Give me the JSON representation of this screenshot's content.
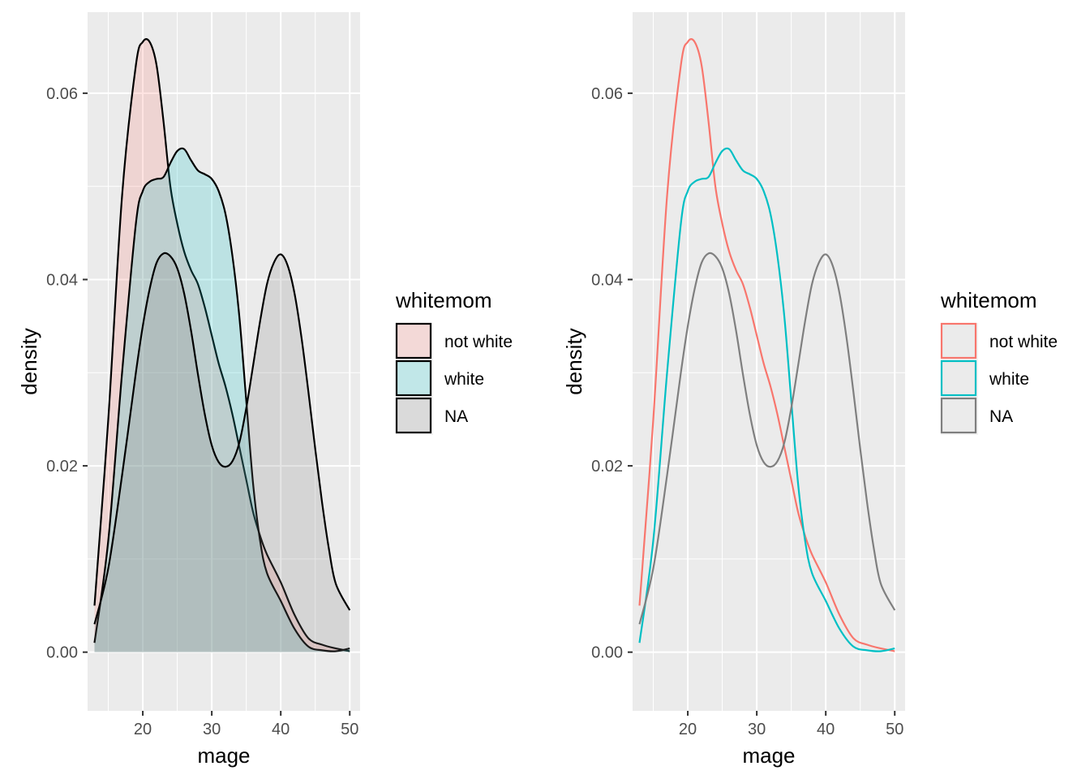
{
  "chart_data": [
    {
      "type": "area",
      "style": "filled",
      "xlabel": "mage",
      "ylabel": "density",
      "xlim": [
        12,
        51.5
      ],
      "ylim": [
        -0.0063,
        0.0687
      ],
      "x_ticks": [
        20,
        30,
        40,
        50
      ],
      "x_tick_labels": [
        "20",
        "30",
        "40",
        "50"
      ],
      "y_ticks": [
        0,
        0.02,
        0.04,
        0.06
      ],
      "y_tick_labels": [
        "0.00",
        "0.02",
        "0.04",
        "0.06"
      ],
      "grid": true,
      "legend": {
        "title": "whitemom",
        "position": "right",
        "entries": [
          "not white",
          "white",
          "NA"
        ]
      },
      "series": [
        {
          "name": "not white",
          "fill": "#F8766D",
          "stroke": "#000000",
          "x": [
            13,
            15,
            17,
            19,
            20,
            21,
            22,
            23,
            24,
            25,
            26,
            27,
            28,
            29,
            30,
            31,
            32,
            33,
            34,
            35,
            36,
            37,
            38,
            40,
            42,
            44,
            46,
            48,
            50
          ],
          "y": [
            0.005,
            0.025,
            0.049,
            0.063,
            0.0655,
            0.0655,
            0.063,
            0.057,
            0.05,
            0.046,
            0.043,
            0.041,
            0.0395,
            0.037,
            0.034,
            0.031,
            0.0285,
            0.0255,
            0.022,
            0.0185,
            0.015,
            0.0125,
            0.0105,
            0.0075,
            0.004,
            0.0015,
            0.0008,
            0.0004,
            0.0001
          ]
        },
        {
          "name": "white",
          "fill": "#00BFC4",
          "stroke": "#000000",
          "x": [
            13,
            15,
            17,
            19,
            20,
            21,
            22,
            23,
            24,
            25,
            26,
            27,
            28,
            29,
            30,
            31,
            32,
            33,
            34,
            35,
            36,
            37,
            38,
            40,
            42,
            44,
            46,
            48,
            50
          ],
          "y": [
            0.001,
            0.012,
            0.03,
            0.046,
            0.0495,
            0.0505,
            0.0508,
            0.051,
            0.0525,
            0.0538,
            0.054,
            0.0528,
            0.0517,
            0.0513,
            0.0508,
            0.0495,
            0.047,
            0.0425,
            0.036,
            0.027,
            0.018,
            0.012,
            0.0085,
            0.0055,
            0.0025,
            0.0006,
            0.0002,
            0.0001,
            0.0004
          ]
        },
        {
          "name": "NA",
          "fill": "#7F7F7F",
          "stroke": "#000000",
          "x": [
            13,
            15,
            17,
            19,
            20,
            21,
            22,
            23,
            24,
            25,
            26,
            27,
            28,
            29,
            30,
            31,
            32,
            33,
            34,
            35,
            36,
            37,
            38,
            39,
            40,
            41,
            42,
            43,
            44,
            45,
            46,
            47,
            48,
            50
          ],
          "y": [
            0.003,
            0.009,
            0.019,
            0.03,
            0.035,
            0.039,
            0.0418,
            0.0428,
            0.0425,
            0.0412,
            0.0385,
            0.0345,
            0.0298,
            0.0255,
            0.0222,
            0.0204,
            0.0199,
            0.0205,
            0.0225,
            0.0262,
            0.0308,
            0.0355,
            0.0395,
            0.0418,
            0.0427,
            0.0415,
            0.0385,
            0.0338,
            0.028,
            0.0218,
            0.016,
            0.011,
            0.0073,
            0.0045
          ]
        }
      ]
    },
    {
      "type": "line",
      "xlabel": "mage",
      "ylabel": "density",
      "xlim": [
        12,
        51.5
      ],
      "ylim": [
        -0.0063,
        0.0687
      ],
      "x_ticks": [
        20,
        30,
        40,
        50
      ],
      "x_tick_labels": [
        "20",
        "30",
        "40",
        "50"
      ],
      "y_ticks": [
        0,
        0.02,
        0.04,
        0.06
      ],
      "y_tick_labels": [
        "0.00",
        "0.02",
        "0.04",
        "0.06"
      ],
      "grid": true,
      "legend": {
        "title": "whitemom",
        "position": "right",
        "entries": [
          "not white",
          "white",
          "NA"
        ]
      },
      "series": [
        {
          "name": "not white",
          "stroke": "#F8766D",
          "x": [
            13,
            15,
            17,
            19,
            20,
            21,
            22,
            23,
            24,
            25,
            26,
            27,
            28,
            29,
            30,
            31,
            32,
            33,
            34,
            35,
            36,
            37,
            38,
            40,
            42,
            44,
            46,
            48,
            50
          ],
          "y": [
            0.005,
            0.025,
            0.049,
            0.063,
            0.0655,
            0.0655,
            0.063,
            0.057,
            0.05,
            0.046,
            0.043,
            0.041,
            0.0395,
            0.037,
            0.034,
            0.031,
            0.0285,
            0.0255,
            0.022,
            0.0185,
            0.015,
            0.0125,
            0.0105,
            0.0075,
            0.004,
            0.0015,
            0.0008,
            0.0004,
            0.0001
          ]
        },
        {
          "name": "white",
          "stroke": "#00BFC4",
          "x": [
            13,
            15,
            17,
            19,
            20,
            21,
            22,
            23,
            24,
            25,
            26,
            27,
            28,
            29,
            30,
            31,
            32,
            33,
            34,
            35,
            36,
            37,
            38,
            40,
            42,
            44,
            46,
            48,
            50
          ],
          "y": [
            0.001,
            0.012,
            0.03,
            0.046,
            0.0495,
            0.0505,
            0.0508,
            0.051,
            0.0525,
            0.0538,
            0.054,
            0.0528,
            0.0517,
            0.0513,
            0.0508,
            0.0495,
            0.047,
            0.0425,
            0.036,
            0.027,
            0.018,
            0.012,
            0.0085,
            0.0055,
            0.0025,
            0.0006,
            0.0002,
            0.0001,
            0.0004
          ]
        },
        {
          "name": "NA",
          "stroke": "#7F7F7F",
          "x": [
            13,
            15,
            17,
            19,
            20,
            21,
            22,
            23,
            24,
            25,
            26,
            27,
            28,
            29,
            30,
            31,
            32,
            33,
            34,
            35,
            36,
            37,
            38,
            39,
            40,
            41,
            42,
            43,
            44,
            45,
            46,
            47,
            48,
            50
          ],
          "y": [
            0.003,
            0.009,
            0.019,
            0.03,
            0.035,
            0.039,
            0.0418,
            0.0428,
            0.0425,
            0.0412,
            0.0385,
            0.0345,
            0.0298,
            0.0255,
            0.0222,
            0.0204,
            0.0199,
            0.0205,
            0.0225,
            0.0262,
            0.0308,
            0.0355,
            0.0395,
            0.0418,
            0.0427,
            0.0415,
            0.0385,
            0.0338,
            0.028,
            0.0218,
            0.016,
            0.011,
            0.0073,
            0.0045
          ]
        }
      ]
    }
  ]
}
